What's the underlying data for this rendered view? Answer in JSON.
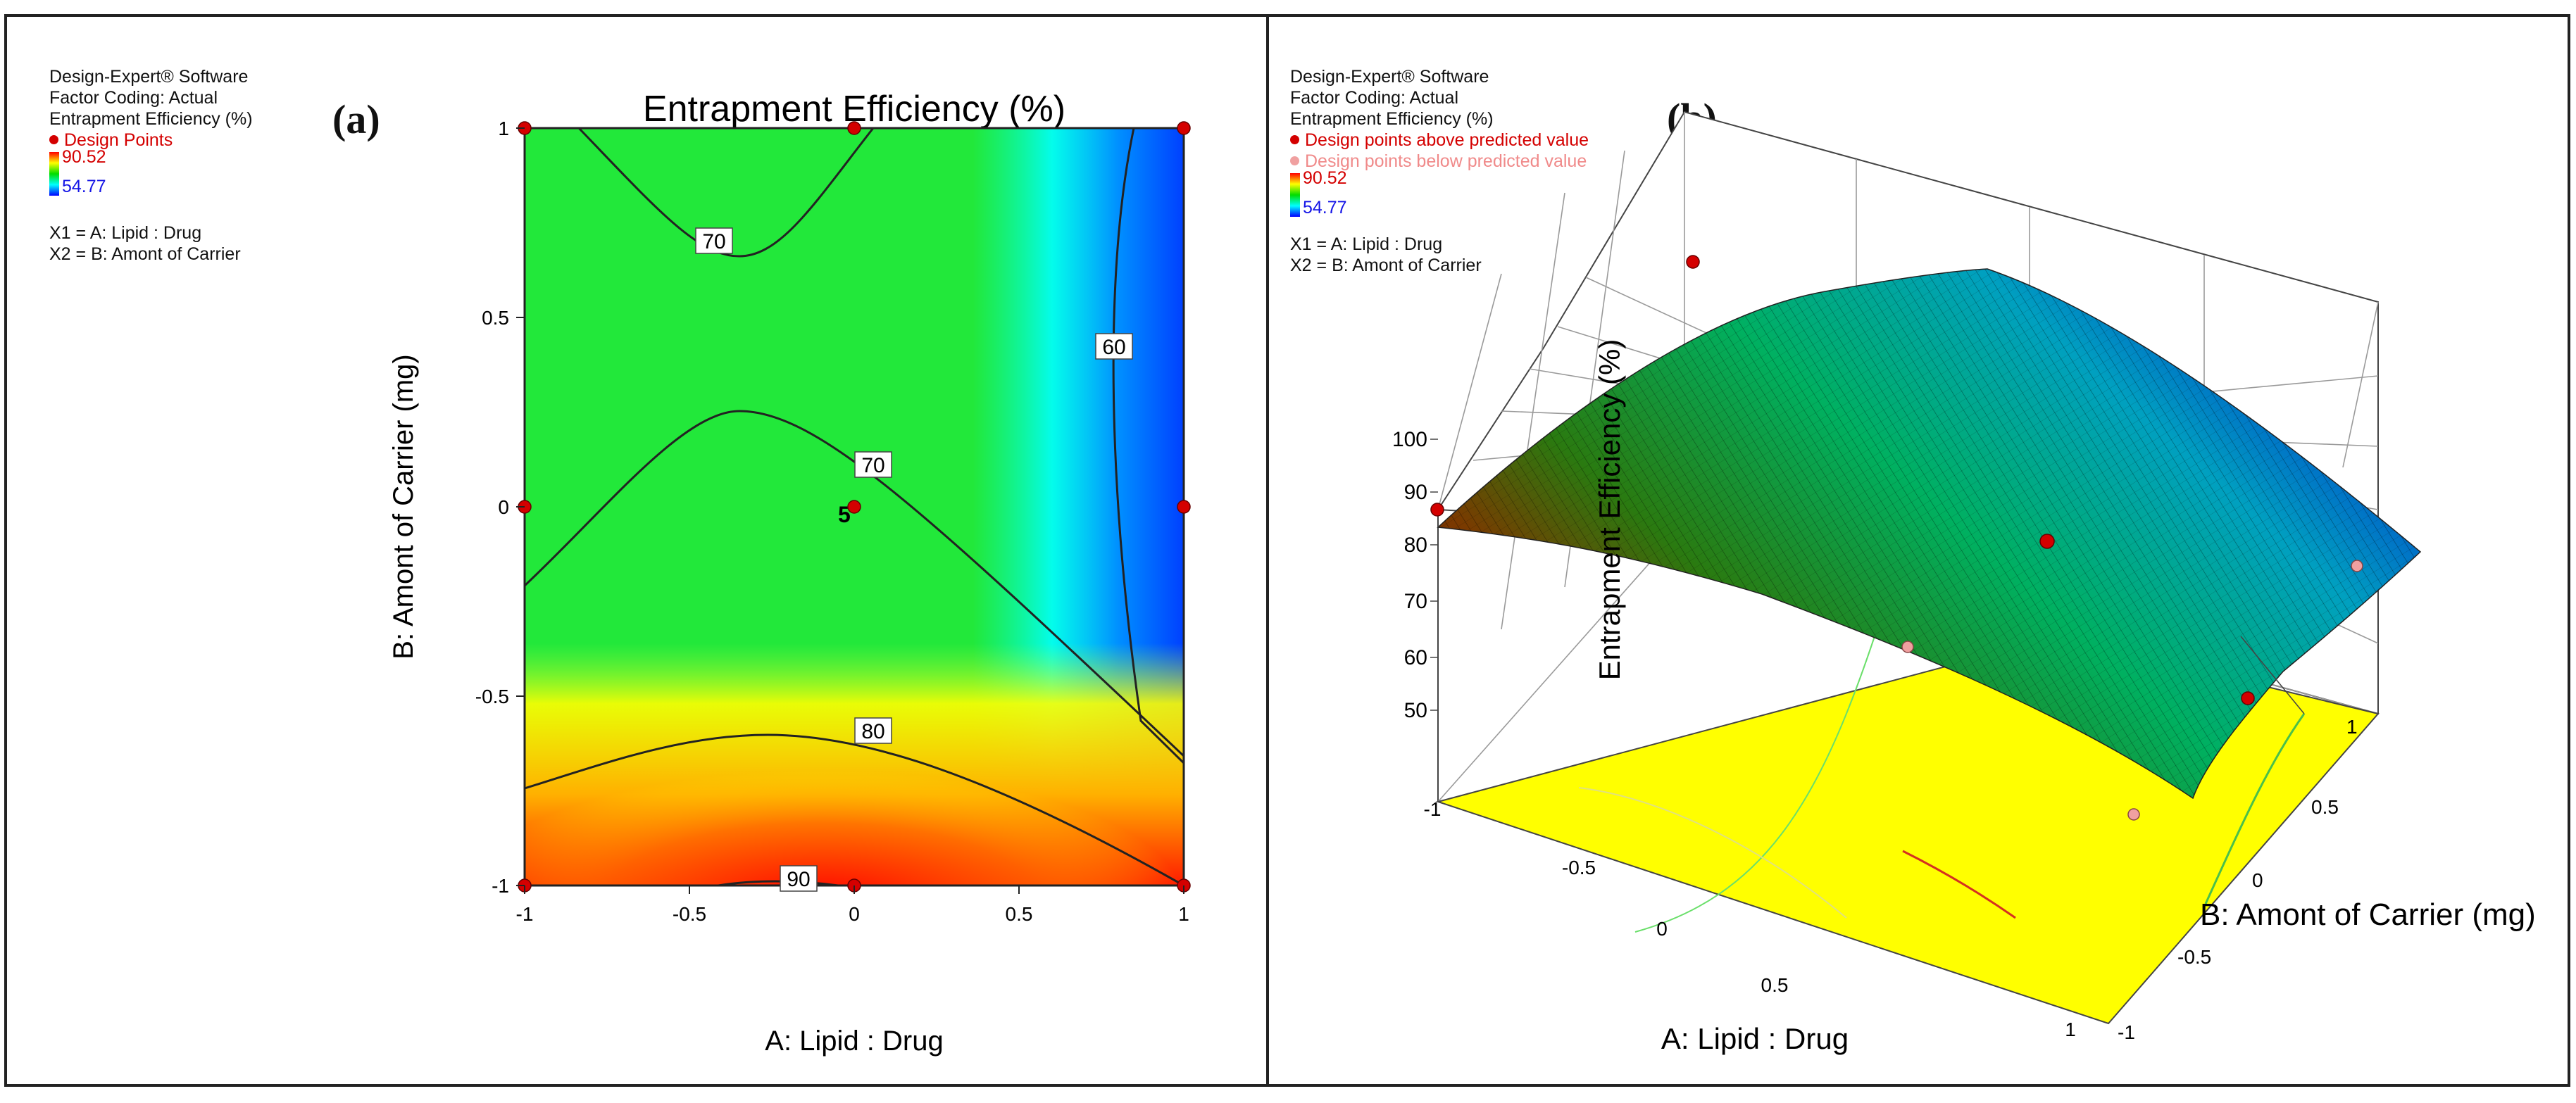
{
  "chart_data": [
    {
      "type": "contour",
      "panel_label": "(a)",
      "title": "Entrapment Efficiency (%)",
      "xlabel": "A: Lipid : Drug",
      "ylabel": "B: Amont of Carrier (mg)",
      "xlim": [
        -1,
        1
      ],
      "ylim": [
        -1,
        1
      ],
      "x_ticks": [
        "-1",
        "-0.5",
        "0",
        "0.5",
        "1"
      ],
      "y_ticks": [
        "-1",
        "-0.5",
        "0",
        "0.5",
        "1"
      ],
      "contour_levels": [
        "60",
        "70",
        "70",
        "80",
        "90"
      ],
      "center_replicates_label": "5",
      "design_points": [
        {
          "x": -1,
          "y": 1
        },
        {
          "x": 0,
          "y": 1
        },
        {
          "x": 1,
          "y": 1
        },
        {
          "x": -1,
          "y": 0
        },
        {
          "x": 0,
          "y": 0
        },
        {
          "x": 1,
          "y": 0
        },
        {
          "x": -1,
          "y": -1
        },
        {
          "x": 0,
          "y": -1
        },
        {
          "x": 1,
          "y": -1
        }
      ],
      "info": {
        "software": "Design-Expert® Software",
        "factor_coding": "Factor Coding: Actual",
        "response": "Entrapment Efficiency (%)",
        "legend_points": "Design Points",
        "color_max": "90.52",
        "color_min": "54.77",
        "x1": "X1 = A: Lipid : Drug",
        "x2": "X2 = B: Amont of Carrier"
      }
    },
    {
      "type": "surface3d",
      "panel_label": "(b)",
      "xlabel": "A: Lipid : Drug",
      "ylabel": "B: Amont of Carrier (mg)",
      "zlabel": "Entrapment Efficiency (%)",
      "z_ticks": [
        "50",
        "60",
        "70",
        "80",
        "90",
        "100"
      ],
      "a_ticks": [
        "-1",
        "-0.5",
        "0",
        "0.5",
        "1"
      ],
      "b_ticks": [
        "-1",
        "-0.5",
        "0",
        "0.5",
        "1"
      ],
      "info": {
        "software": "Design-Expert® Software",
        "factor_coding": "Factor Coding: Actual",
        "response": "Entrapment Efficiency (%)",
        "above": "Design points above predicted value",
        "below": "Design points below predicted value",
        "color_max": "90.52",
        "color_min": "54.77",
        "x1": "X1 = A: Lipid : Drug",
        "x2": "X2 = B: Amont of Carrier"
      }
    }
  ],
  "colors": {
    "design_point": "#d40000",
    "below_point": "#f0a0a0",
    "floor": "#ffff00"
  }
}
